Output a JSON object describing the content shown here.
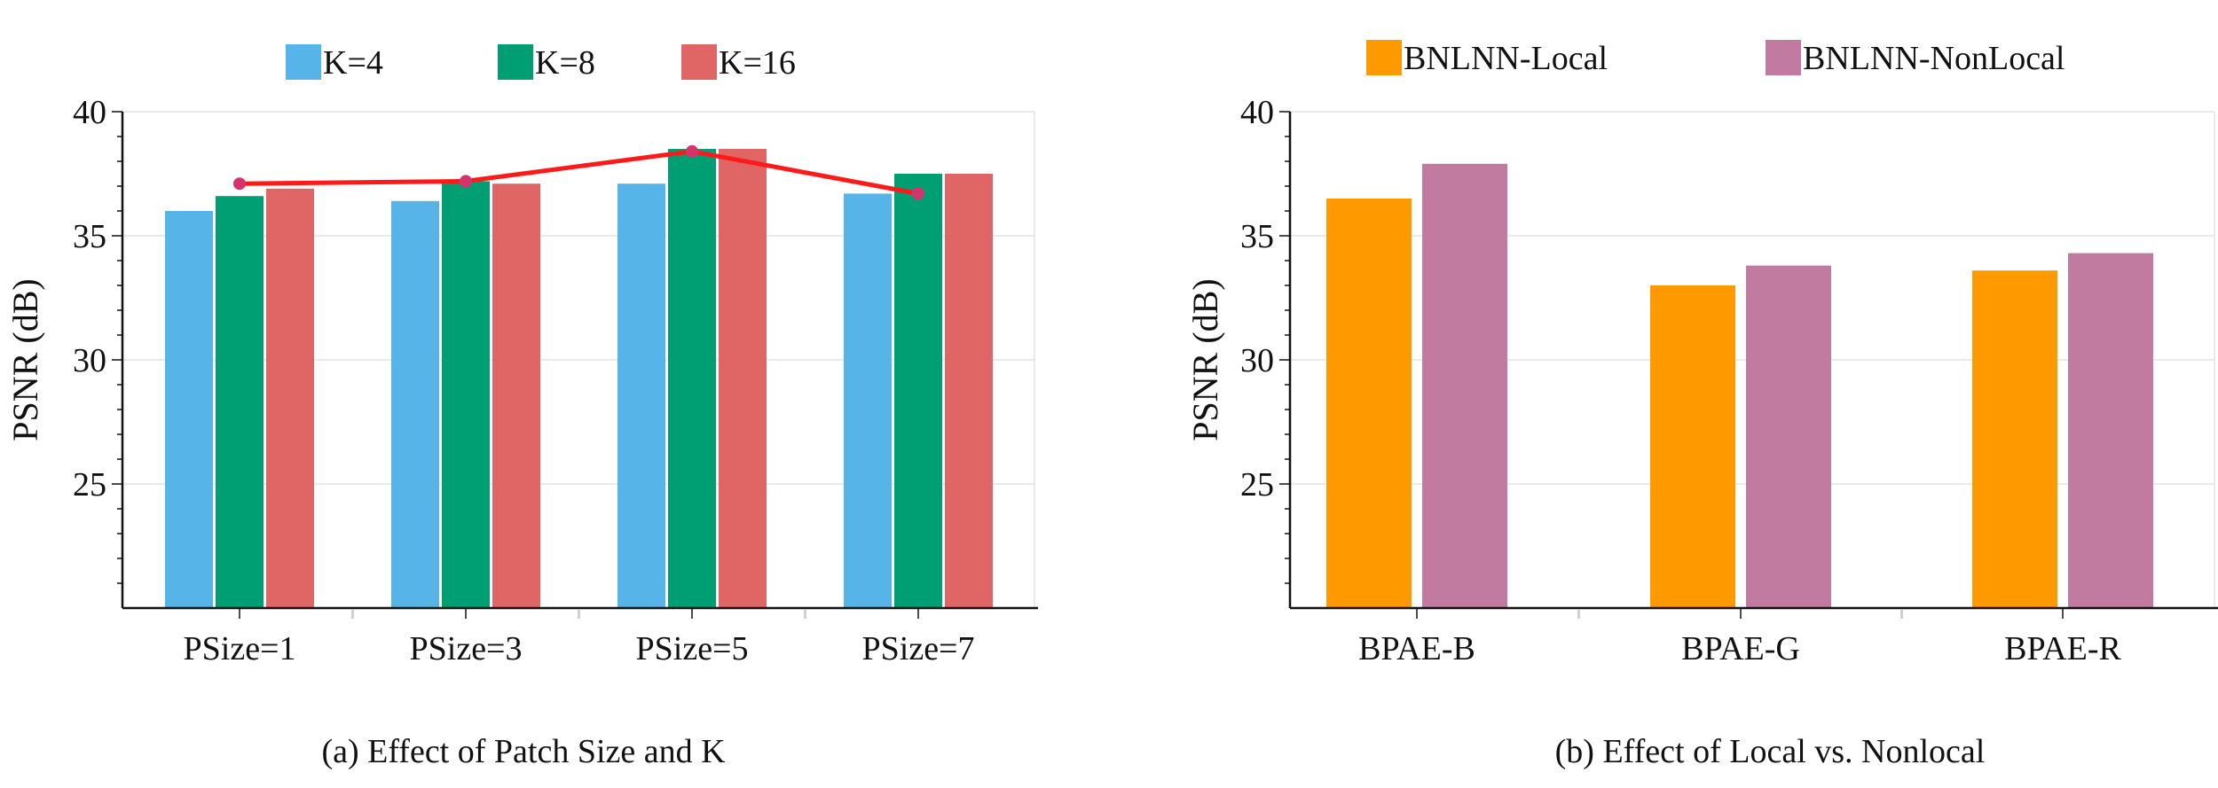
{
  "chart_data": [
    {
      "type": "bar",
      "caption": "(a) Effect of Patch Size and K",
      "categories": [
        "PSize=1",
        "PSize=3",
        "PSize=5",
        "PSize=7"
      ],
      "series": [
        {
          "name": "K=4",
          "color": "#56B4E9",
          "values": [
            36.0,
            36.4,
            37.1,
            36.7
          ]
        },
        {
          "name": "K=8",
          "color": "#009E73",
          "values": [
            36.6,
            37.2,
            38.5,
            37.5
          ]
        },
        {
          "name": "K=16",
          "color": "#E06666",
          "values": [
            36.9,
            37.1,
            38.5,
            37.5
          ]
        }
      ],
      "line": {
        "color": "#FF1A1A",
        "marker_color": "#D6336C",
        "values": [
          37.1,
          37.2,
          38.4,
          36.7
        ]
      },
      "xlabel": "",
      "ylabel": "PSNR (dB)",
      "ylim": [
        20,
        40
      ],
      "yticks": [
        25,
        30,
        35,
        40
      ],
      "grid": true,
      "legend": "top"
    },
    {
      "type": "bar",
      "caption": "(b) Effect of Local vs. Nonlocal",
      "categories": [
        "BPAE-B",
        "BPAE-G",
        "BPAE-R"
      ],
      "series": [
        {
          "name": "BNLNN-Local",
          "color": "#FF9900",
          "values": [
            36.5,
            33.0,
            33.6
          ]
        },
        {
          "name": "BNLNN-NonLocal",
          "color": "#C27BA0",
          "values": [
            37.9,
            33.8,
            34.3
          ]
        }
      ],
      "xlabel": "",
      "ylabel": "PSNR (dB)",
      "ylim": [
        20,
        40
      ],
      "yticks": [
        25,
        30,
        35,
        40
      ],
      "grid": true,
      "legend": "top"
    }
  ]
}
